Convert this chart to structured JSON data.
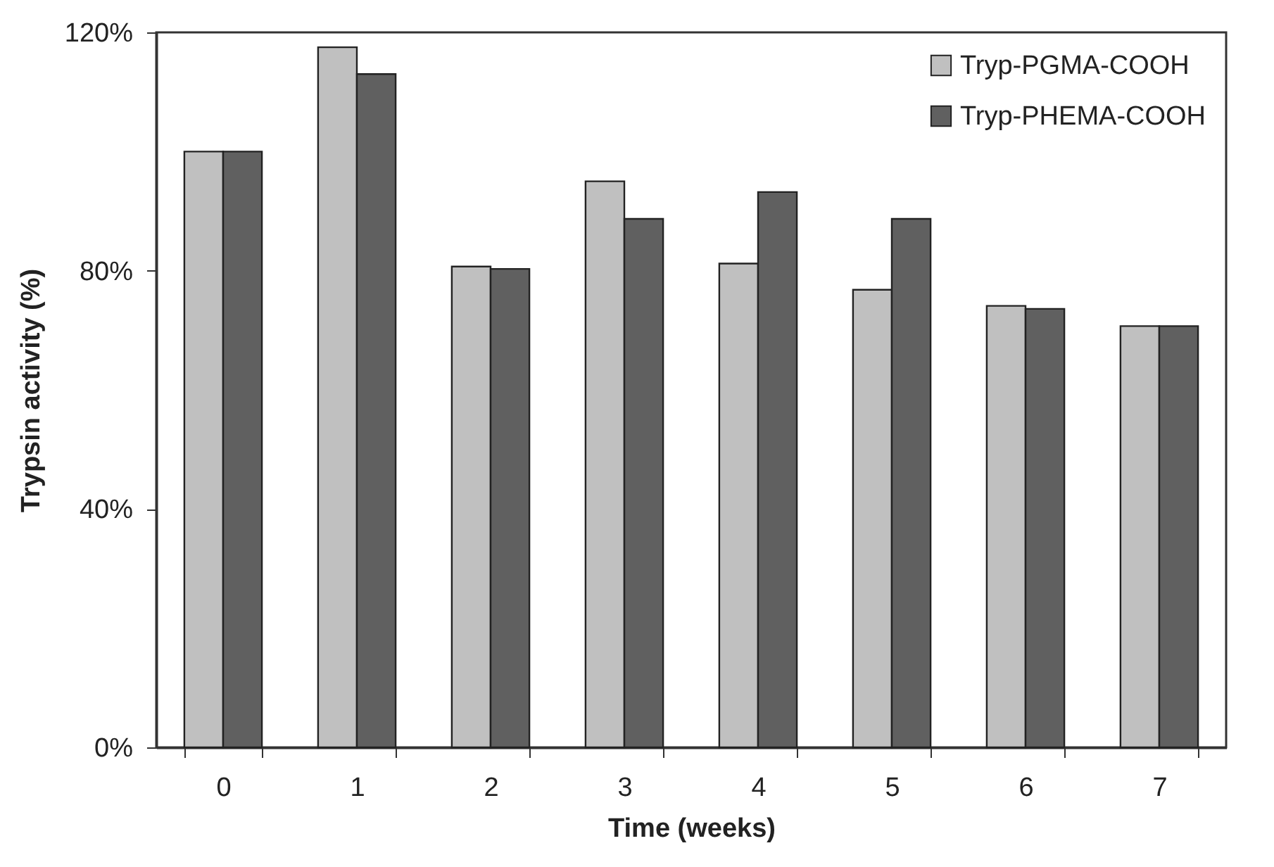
{
  "chart_data": {
    "type": "bar",
    "xlabel": "Time (weeks)",
    "ylabel": "Trypsin activity (%)",
    "categories": [
      "0",
      "1",
      "2",
      "3",
      "4",
      "5",
      "6",
      "7"
    ],
    "series": [
      {
        "name": "Tryp-PGMA-COOH",
        "color": "#c0c0c0",
        "values": [
          100,
          117.5,
          80.7,
          95,
          81.2,
          76.8,
          74.1,
          70.7
        ]
      },
      {
        "name": "Tryp-PHEMA-COOH",
        "color": "#606060",
        "values": [
          100,
          113,
          80.3,
          88.7,
          93.2,
          88.7,
          73.6,
          70.7
        ]
      }
    ],
    "ylim": [
      0,
      120
    ],
    "yticks": [
      {
        "value": 0,
        "label": "0%"
      },
      {
        "value": 40,
        "label": "40%"
      },
      {
        "value": 80,
        "label": "80%"
      },
      {
        "value": 120,
        "label": "120%"
      }
    ],
    "grid": false,
    "legend": "top right"
  }
}
